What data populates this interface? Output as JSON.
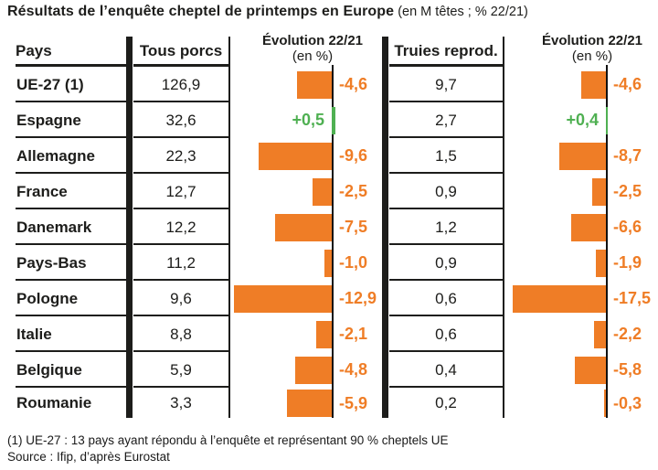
{
  "title": {
    "main": "Résultats de l’enquête cheptel de printemps en Europe",
    "suffix": " (en M têtes ; % 22/21)"
  },
  "table": {
    "headers": {
      "pays": "Pays",
      "tous_porcs": "Tous porcs",
      "evolution": "Évolution 22/21",
      "evolution_sub": "(en %)",
      "truies": "Truies reprod.",
      "evolution2": "Évolution 22/21",
      "evolution2_sub": "(en %)"
    }
  },
  "rows": [
    {
      "pays": "UE-27 (1)",
      "tous_porcs": "126,9",
      "evo_porcs": -4.6,
      "evo_porcs_label": "-4,6",
      "truies": "9,7",
      "evo_truies": -4.6,
      "evo_truies_label": "-4,6"
    },
    {
      "pays": "Espagne",
      "tous_porcs": "32,6",
      "evo_porcs": 0.5,
      "evo_porcs_label": "+0,5",
      "truies": "2,7",
      "evo_truies": 0.4,
      "evo_truies_label": "+0,4"
    },
    {
      "pays": "Allemagne",
      "tous_porcs": "22,3",
      "evo_porcs": -9.6,
      "evo_porcs_label": "-9,6",
      "truies": "1,5",
      "evo_truies": -8.7,
      "evo_truies_label": "-8,7"
    },
    {
      "pays": "France",
      "tous_porcs": "12,7",
      "evo_porcs": -2.5,
      "evo_porcs_label": "-2,5",
      "truies": "0,9",
      "evo_truies": -2.5,
      "evo_truies_label": "-2,5"
    },
    {
      "pays": "Danemark",
      "tous_porcs": "12,2",
      "evo_porcs": -7.5,
      "evo_porcs_label": "-7,5",
      "truies": "1,2",
      "evo_truies": -6.6,
      "evo_truies_label": "-6,6"
    },
    {
      "pays": "Pays-Bas",
      "tous_porcs": "11,2",
      "evo_porcs": -1.0,
      "evo_porcs_label": "-1,0",
      "truies": "0,9",
      "evo_truies": -1.9,
      "evo_truies_label": "-1,9"
    },
    {
      "pays": "Pologne",
      "tous_porcs": "9,6",
      "evo_porcs": -12.9,
      "evo_porcs_label": "-12,9",
      "truies": "0,6",
      "evo_truies": -17.5,
      "evo_truies_label": "-17,5"
    },
    {
      "pays": "Italie",
      "tous_porcs": "8,8",
      "evo_porcs": -2.1,
      "evo_porcs_label": "-2,1",
      "truies": "0,6",
      "evo_truies": -2.2,
      "evo_truies_label": "-2,2"
    },
    {
      "pays": "Belgique",
      "tous_porcs": "5,9",
      "evo_porcs": -4.8,
      "evo_porcs_label": "-4,8",
      "truies": "0,4",
      "evo_truies": -5.8,
      "evo_truies_label": "-5,8"
    },
    {
      "pays": "Roumanie",
      "tous_porcs": "3,3",
      "evo_porcs": -5.9,
      "evo_porcs_label": "-5,9",
      "truies": "0,2",
      "evo_truies": -0.3,
      "evo_truies_label": "-0,3"
    }
  ],
  "chart_data": [
    {
      "type": "bar",
      "orientation": "horizontal",
      "title": "Évolution 22/21 (en %) — Tous porcs",
      "categories": [
        "UE-27 (1)",
        "Espagne",
        "Allemagne",
        "France",
        "Danemark",
        "Pays-Bas",
        "Pologne",
        "Italie",
        "Belgique",
        "Roumanie"
      ],
      "values": [
        -4.6,
        0.5,
        -9.6,
        -2.5,
        -7.5,
        -1.0,
        -12.9,
        -2.1,
        -4.8,
        -5.9
      ],
      "value_labels": [
        "-4,6",
        "+0,5",
        "-9,6",
        "-2,5",
        "-7,5",
        "-1,0",
        "-12,9",
        "-2,1",
        "-4,8",
        "-5,9"
      ],
      "xlim": [
        -14,
        1
      ],
      "negative_color": "#EF7D26",
      "positive_color": "#4FB052",
      "grid": false,
      "legend": false
    },
    {
      "type": "bar",
      "orientation": "horizontal",
      "title": "Évolution 22/21 (en %) — Truies reprod.",
      "categories": [
        "UE-27 (1)",
        "Espagne",
        "Allemagne",
        "France",
        "Danemark",
        "Pays-Bas",
        "Pologne",
        "Italie",
        "Belgique",
        "Roumanie"
      ],
      "values": [
        -4.6,
        0.4,
        -8.7,
        -2.5,
        -6.6,
        -1.9,
        -17.5,
        -2.2,
        -5.8,
        -0.3
      ],
      "value_labels": [
        "-4,6",
        "+0,4",
        "-8,7",
        "-2,5",
        "-6,6",
        "-1,9",
        "-17,5",
        "-2,2",
        "-5,8",
        "-0,3"
      ],
      "xlim": [
        -19,
        1
      ],
      "negative_color": "#EF7D26",
      "positive_color": "#4FB052",
      "grid": false,
      "legend": false
    }
  ],
  "footnote": "(1) UE-27 : 13 pays ayant répondu à l’enquête et représentant 90 % cheptels UE",
  "source": "Source : Ifip, d’après Eurostat",
  "colors": {
    "orange": "#EF7D26",
    "green": "#4FB052",
    "ink": "#1D1D1B"
  }
}
